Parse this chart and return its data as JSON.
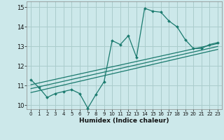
{
  "bg_color": "#cce8ea",
  "grid_color": "#aacccc",
  "line_color": "#1a7a6e",
  "xlabel": "Humidex (Indice chaleur)",
  "ylim": [
    9.8,
    15.3
  ],
  "xlim": [
    -0.5,
    23.5
  ],
  "yticks": [
    10,
    11,
    12,
    13,
    14,
    15
  ],
  "xticks": [
    0,
    1,
    2,
    3,
    4,
    5,
    6,
    7,
    8,
    9,
    10,
    11,
    12,
    13,
    14,
    15,
    16,
    17,
    18,
    19,
    20,
    21,
    22,
    23
  ],
  "series1_x": [
    0,
    1,
    2,
    3,
    4,
    5,
    6,
    7,
    8,
    9,
    10,
    11,
    12,
    13,
    14,
    15,
    16,
    17,
    18,
    19,
    20,
    21,
    22,
    23
  ],
  "series1_y": [
    11.3,
    10.9,
    10.4,
    10.6,
    10.7,
    10.8,
    10.6,
    9.85,
    10.55,
    11.2,
    13.3,
    13.1,
    13.55,
    12.45,
    14.95,
    14.8,
    14.75,
    14.3,
    14.0,
    13.35,
    12.9,
    12.9,
    13.1,
    13.2
  ],
  "trend1_x": [
    0,
    23
  ],
  "trend1_y": [
    11.05,
    13.15
  ],
  "trend2_x": [
    0,
    23
  ],
  "trend2_y": [
    10.85,
    13.0
  ],
  "trend3_x": [
    0,
    23
  ],
  "trend3_y": [
    10.65,
    12.85
  ]
}
